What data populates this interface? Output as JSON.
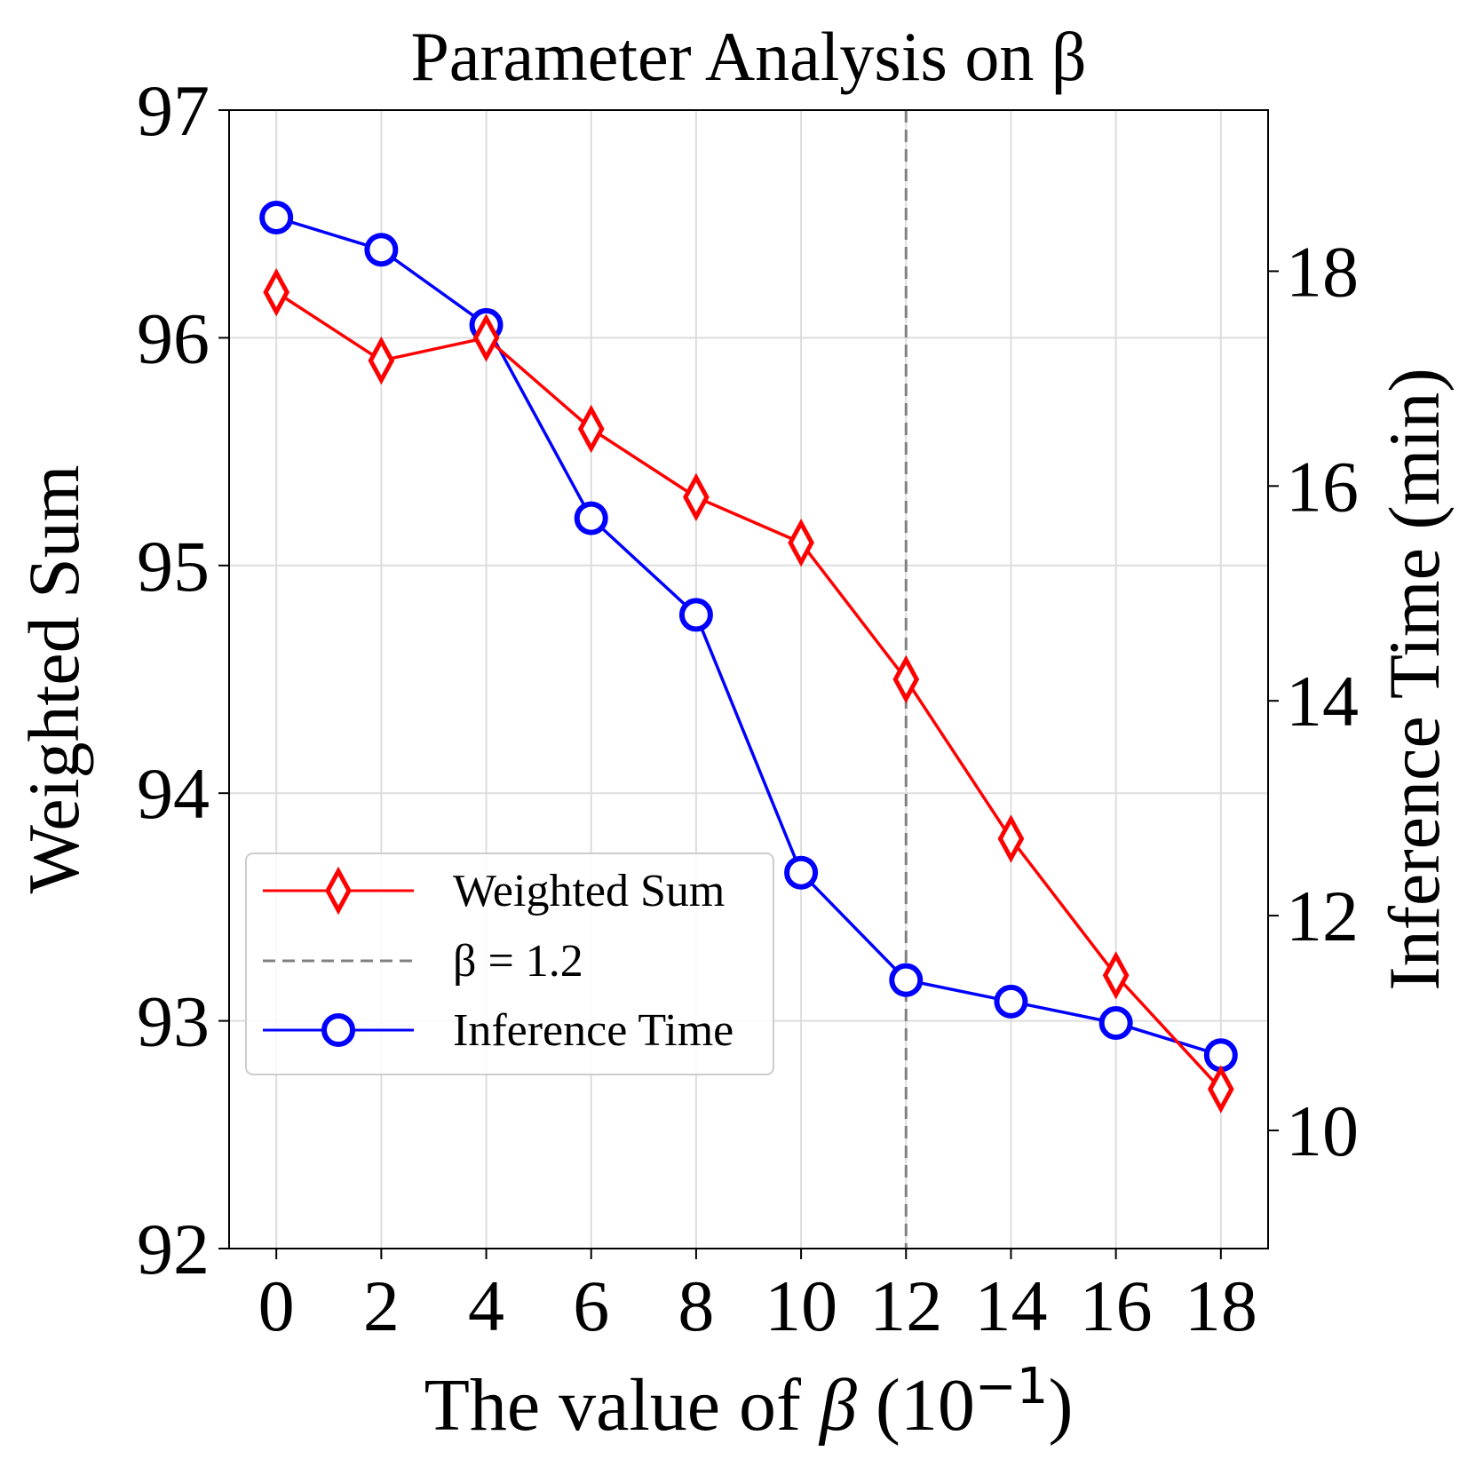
{
  "chart_data": {
    "type": "line",
    "title": "Parameter Analysis on β",
    "xlabel": {
      "prefix": "The value of ",
      "symbol": "β",
      "unit": "(10",
      "exponent": "−1",
      "close": ")"
    },
    "ylabel_left": "Weighted Sum",
    "ylabel_right": "Inference Time (min)",
    "x": [
      0,
      2,
      4,
      6,
      8,
      10,
      12,
      14,
      16,
      18
    ],
    "xlim": [
      -0.9,
      18.9
    ],
    "x_ticks": [
      "0",
      "2",
      "4",
      "6",
      "8",
      "10",
      "12",
      "14",
      "16",
      "18"
    ],
    "ylim_left": [
      92,
      97
    ],
    "y_ticks_left": [
      "92",
      "93",
      "94",
      "95",
      "96",
      "97"
    ],
    "ylim_right": [
      8.9,
      19.5
    ],
    "y_ticks_right": [
      "10",
      "12",
      "14",
      "16",
      "18"
    ],
    "grid": true,
    "legend_placement": "lower-left",
    "series": [
      {
        "name": "Weighted Sum",
        "axis": "left",
        "color": "#ff0000",
        "marker": "thin-diamond",
        "values": [
          96.2,
          95.9,
          96.0,
          95.6,
          95.3,
          95.1,
          94.5,
          93.8,
          93.2,
          92.7
        ]
      },
      {
        "name": "Inference Time",
        "axis": "right",
        "color": "#0000ff",
        "marker": "circle",
        "values": [
          18.5,
          18.2,
          17.5,
          15.7,
          14.8,
          12.4,
          11.4,
          11.2,
          11.0,
          10.7
        ]
      }
    ],
    "reference_line": {
      "x": 12,
      "label": "β = 1.2",
      "color": "#808080",
      "style": "dashed"
    },
    "legend": [
      "Weighted Sum",
      "β = 1.2",
      "Inference Time"
    ]
  }
}
